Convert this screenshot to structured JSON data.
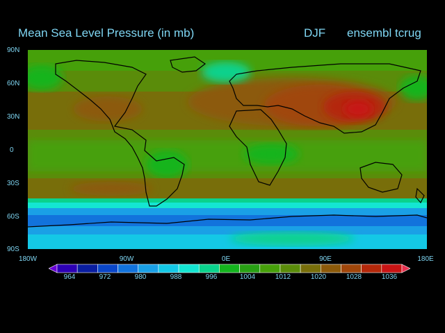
{
  "header": {
    "title": "Mean Sea Level Pressure (in mb)",
    "season": "DJF",
    "ensemble": "ensembl tcrug"
  },
  "axes": {
    "lat_labels": [
      "90N",
      "60N",
      "30N",
      "0",
      "30S",
      "60S",
      "90S"
    ],
    "lon_labels": [
      "180W",
      "90W",
      "0E",
      "90E",
      "180E"
    ]
  },
  "colorbar": {
    "labels": [
      "964",
      "972",
      "980",
      "988",
      "996",
      "1004",
      "1012",
      "1020",
      "1028",
      "1036"
    ],
    "colors": [
      "#6a00d6",
      "#2d00b4",
      "#0a1ea0",
      "#0a46c8",
      "#1273dc",
      "#1aa0e6",
      "#14c8e6",
      "#14e6d2",
      "#0ad28c",
      "#14b41e",
      "#28a014",
      "#46a00a",
      "#5a8c0a",
      "#786e0a",
      "#8c5a0a",
      "#a0460a",
      "#b4280a",
      "#c81414",
      "#e63250"
    ]
  }
}
